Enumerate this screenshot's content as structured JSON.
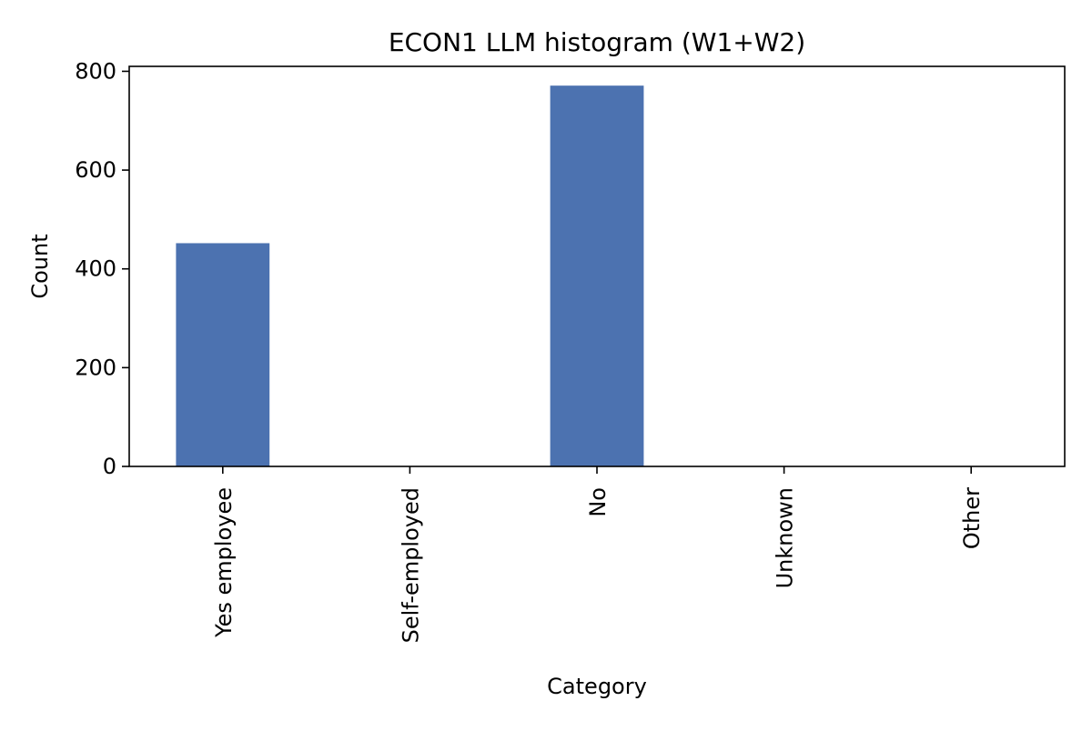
{
  "chart_data": {
    "type": "bar",
    "title": "ECON1 LLM histogram (W1+W2)",
    "xlabel": "Category",
    "ylabel": "Count",
    "categories": [
      "Yes employee",
      "Self-employed",
      "No",
      "Unknown",
      "Other"
    ],
    "values": [
      452,
      0,
      771,
      0,
      0
    ],
    "ylim": [
      0,
      810
    ],
    "yticks": [
      0,
      200,
      400,
      600,
      800
    ],
    "grid": false,
    "legend": "none",
    "bar_color": "#4c72b0",
    "axis_color": "#000000",
    "background": "#ffffff"
  }
}
